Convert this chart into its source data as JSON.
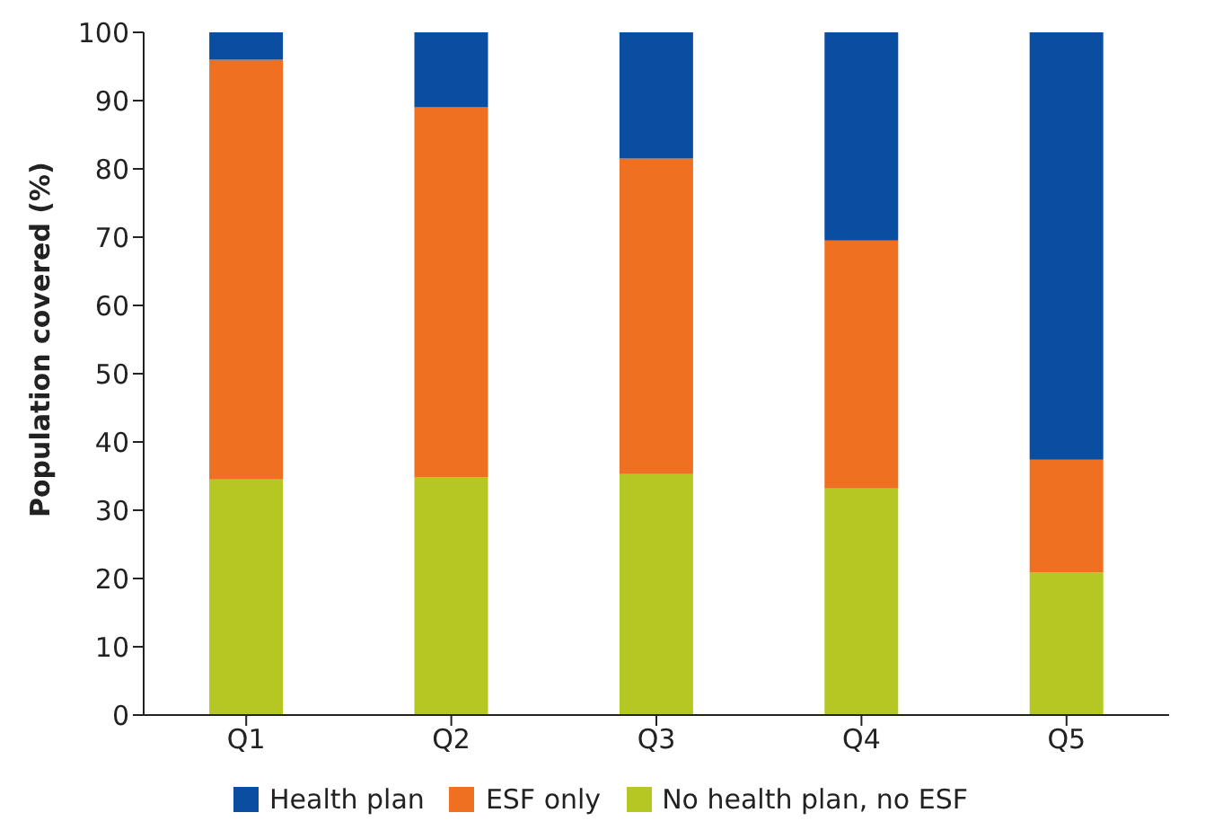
{
  "chart_data": {
    "type": "bar",
    "stacked": true,
    "ylabel": "Population covered (%)",
    "categories": [
      "Q1",
      "Q2",
      "Q3",
      "Q4",
      "Q5"
    ],
    "series": [
      {
        "name": "No health plan, no ESF",
        "color": "#b5c723",
        "values": [
          34.5,
          34.8,
          35.3,
          33.2,
          20.9
        ]
      },
      {
        "name": "ESF only",
        "color": "#f07022",
        "values": [
          61.5,
          54.2,
          46.2,
          36.3,
          16.5
        ]
      },
      {
        "name": "Health plan",
        "color": "#0a4ea2",
        "values": [
          4,
          11,
          18.5,
          30.5,
          62.6
        ]
      }
    ],
    "ylim": [
      0,
      100
    ],
    "yticks": [
      0,
      10,
      20,
      30,
      40,
      50,
      60,
      70,
      80,
      90,
      100
    ],
    "grid": false,
    "legend": "bottom"
  }
}
